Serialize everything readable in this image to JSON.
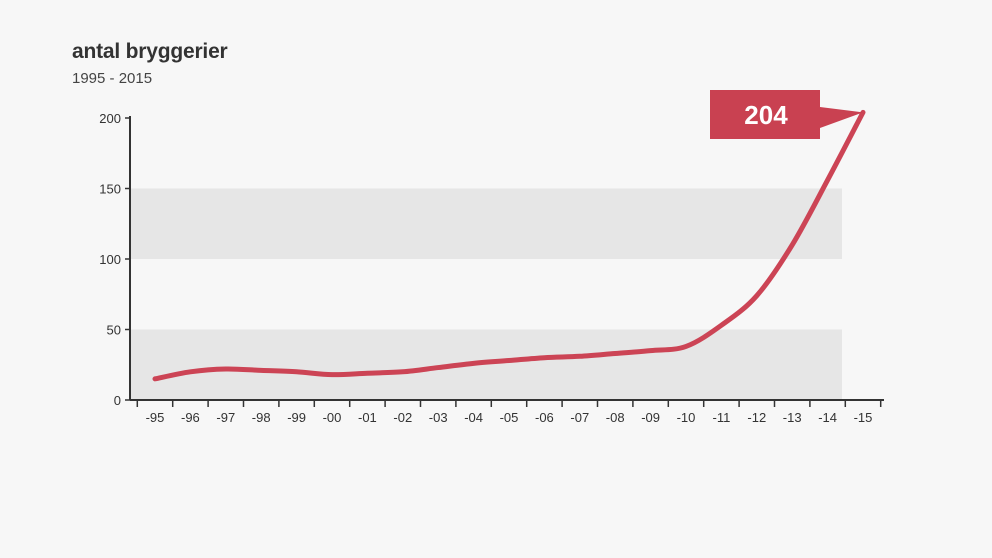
{
  "chart_data": {
    "type": "line",
    "title": "antal bryggerier",
    "subtitle": "1995 - 2015",
    "categories": [
      "-95",
      "-96",
      "-97",
      "-98",
      "-99",
      "-00",
      "-01",
      "-02",
      "-03",
      "-04",
      "-05",
      "-06",
      "-07",
      "-08",
      "-09",
      "-10",
      "-11",
      "-12",
      "-13",
      "-14",
      "-15"
    ],
    "series": [
      {
        "values": [
          15,
          20,
          22,
          21,
          20,
          18,
          19,
          20,
          23,
          26,
          28,
          30,
          31,
          33,
          35,
          38,
          53,
          74,
          110,
          156,
          204
        ]
      }
    ],
    "yticks": [
      0,
      50,
      100,
      150,
      200
    ],
    "ylim": [
      0,
      200
    ],
    "grid": "alternating horizontal bands",
    "callout": {
      "value": "204",
      "category": "-15"
    },
    "colors": {
      "line": "#cc4455",
      "callout": "#c94151",
      "band": "#e6e6e6",
      "axis": "#333333"
    }
  }
}
